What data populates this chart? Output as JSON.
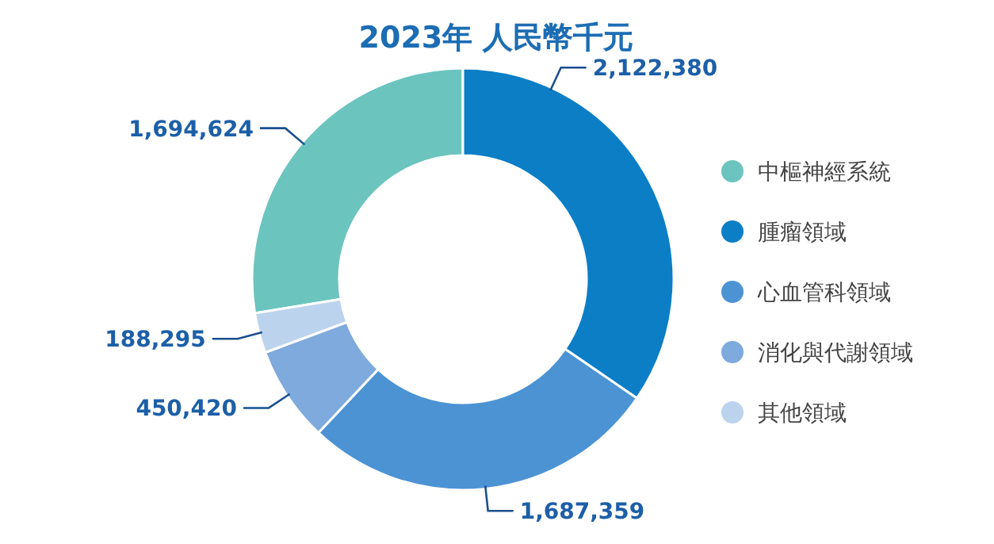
{
  "chart_data": {
    "type": "donut",
    "title": "2023年 人民幣千元",
    "categories": [
      "中樞神經系統",
      "腫瘤領域",
      "心血管科領域",
      "消化與代謝領域",
      "其他領域"
    ],
    "values": [
      1694624,
      2122380,
      1687359,
      450420,
      188295
    ],
    "colors": [
      "#6cc4bf",
      "#0b7ec6",
      "#4c93d4",
      "#7eaadd",
      "#bcd3ee"
    ],
    "value_labels": [
      "1,694,624",
      "2,122,380",
      "1,687,359",
      "450,420",
      "188,295"
    ],
    "legend": "right"
  }
}
